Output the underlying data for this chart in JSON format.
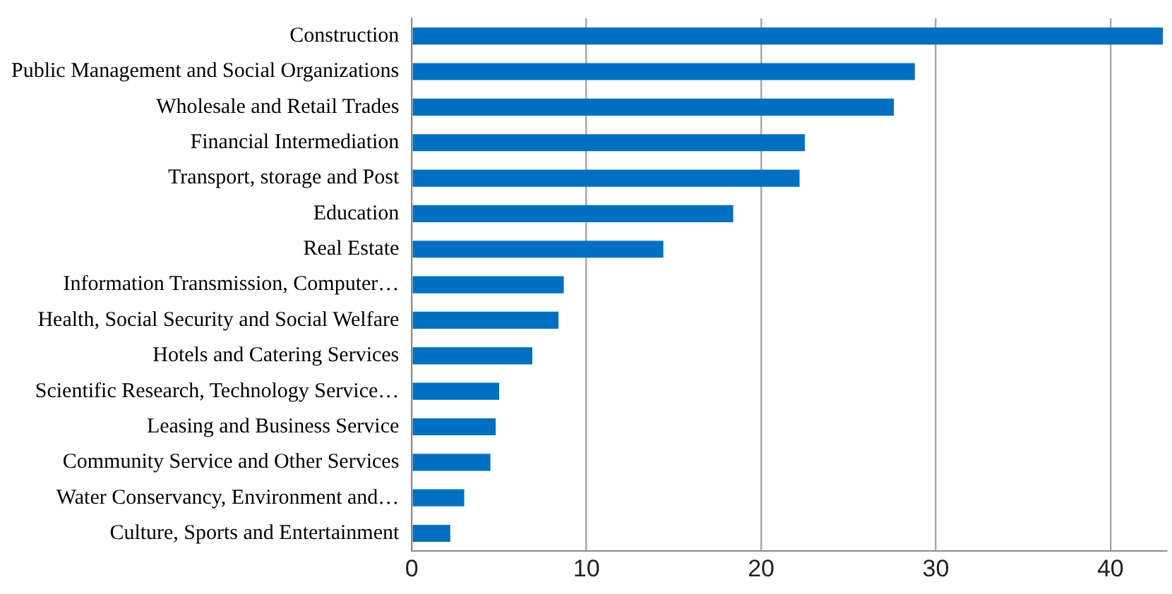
{
  "chart_data": {
    "type": "bar",
    "orientation": "horizontal",
    "categories": [
      "Construction",
      "Public Management and Social Organizations",
      "Wholesale and Retail Trades",
      "Financial Intermediation",
      "Transport, storage and Post",
      "Education",
      "Real Estate",
      "Information Transmission, Computer…",
      "Health, Social Security and Social Welfare",
      "Hotels and Catering Services",
      "Scientific Research, Technology Service…",
      "Leasing and Business Service",
      "Community Service and Other Services",
      "Water Conservancy, Environment and…",
      "Culture, Sports and Entertainment"
    ],
    "values": [
      43.0,
      28.8,
      27.6,
      22.5,
      22.2,
      18.4,
      14.4,
      8.7,
      8.4,
      6.9,
      5.0,
      4.8,
      4.5,
      3.0,
      2.2
    ],
    "color": "#0070c0",
    "xlim": [
      0,
      43.2
    ],
    "xticks": [
      0,
      10,
      20,
      30,
      40
    ],
    "grid": "x",
    "legend": false
  }
}
